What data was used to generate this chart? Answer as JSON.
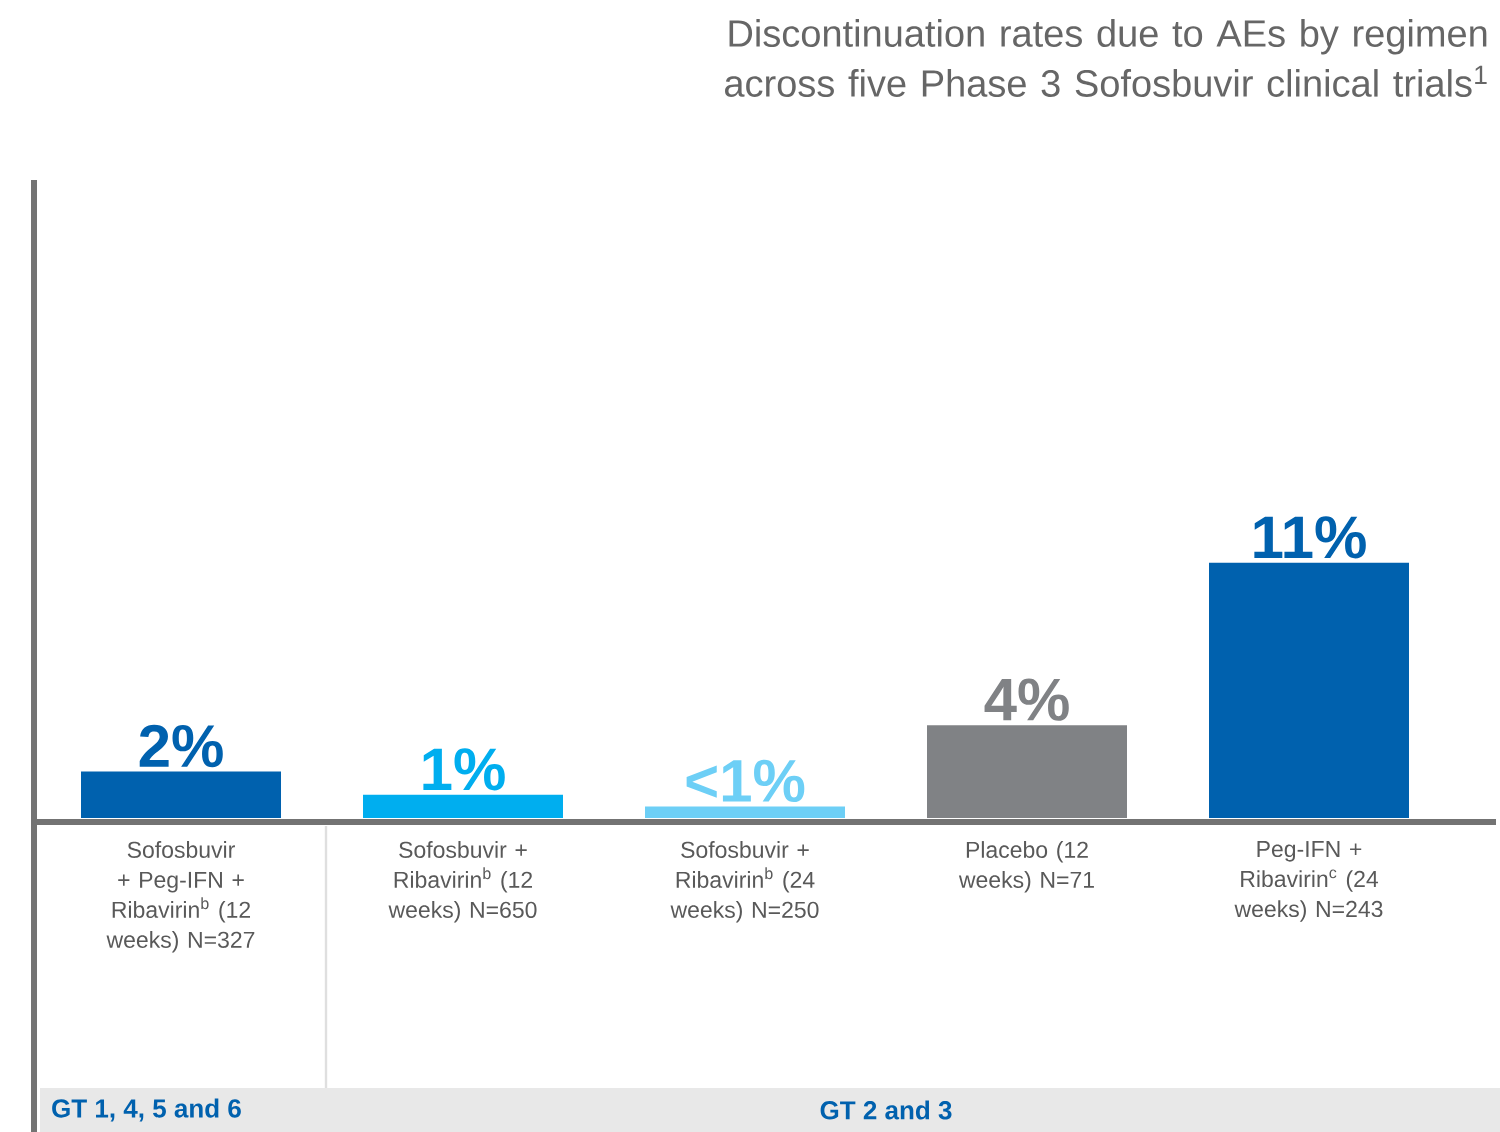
{
  "chart_data": {
    "type": "bar",
    "title": "Discontinuation rates due to AEs by regimen across five Phase 3 Sofosbuvir clinical trials$^{1}$",
    "categories": [
      "Sofosbuvir + Peg-IFN + Ribavirin$^{b}$ (12 weeks) N=327",
      "Sofosbuvir + Ribavirin$^{b}$ (12 weeks) N=650",
      "Sofosbuvir + Ribavirin$^{b}$ (24 weeks) N=250",
      "Placebo (12 weeks) N=71",
      "Peg-IFN + Ribavirin$^{c}$ (24 weeks) N=243"
    ],
    "values": [
      2,
      1,
      0.5,
      4,
      11
    ],
    "value_labels": [
      "2%",
      "1%",
      "<1%",
      "4%",
      "11%"
    ],
    "colors": [
      "#0061ae",
      "#00aeef",
      "#6dcff6",
      "#808285",
      "#0061ae"
    ],
    "annotations": [
      "GT 1, 4, 5 and 6",
      "GT 2 and 3"
    ]
  }
}
